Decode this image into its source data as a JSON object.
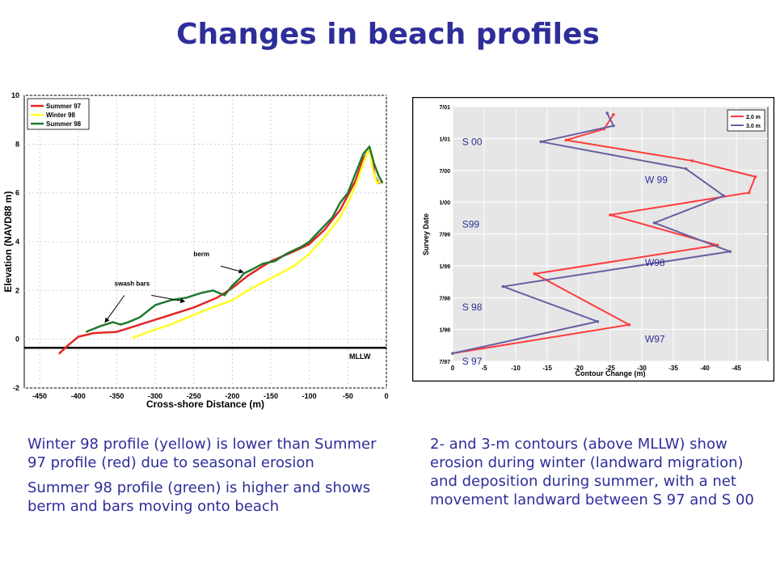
{
  "title": "Changes in beach profiles",
  "chart_data": [
    {
      "type": "line",
      "xlabel": "Cross-shore Distance (m)",
      "ylabel": "Elevation (NAVD88 m)",
      "xlim": [
        -470,
        0
      ],
      "ylim": [
        -2,
        10
      ],
      "xticks": [
        -450,
        -400,
        -350,
        -300,
        -250,
        -200,
        -150,
        -100,
        -50,
        0
      ],
      "yticks": [
        -2,
        0,
        2,
        4,
        6,
        8,
        10
      ],
      "grid": true,
      "legend": "top-left",
      "reference_line": {
        "label": "MLLW",
        "y": -0.35
      },
      "annotations": [
        {
          "text": "swash bars",
          "x": -330,
          "y": 2.2
        },
        {
          "text": "berm",
          "x": -240,
          "y": 3.4
        }
      ],
      "series": [
        {
          "name": "Summer 97",
          "color": "#e32626",
          "x": [
            -425,
            -415,
            -400,
            -380,
            -350,
            -330,
            -300,
            -280,
            -250,
            -220,
            -200,
            -180,
            -150,
            -120,
            -100,
            -80,
            -60,
            -50,
            -40,
            -30,
            -22,
            -18,
            -15,
            -10,
            -5
          ],
          "y": [
            -0.6,
            -0.3,
            0.1,
            0.25,
            0.3,
            0.5,
            0.8,
            1.0,
            1.3,
            1.7,
            2.1,
            2.6,
            3.2,
            3.6,
            3.9,
            4.5,
            5.3,
            5.9,
            6.5,
            7.4,
            7.8,
            7.2,
            6.7,
            6.4,
            6.5
          ]
        },
        {
          "name": "Winter 98",
          "color": "#ffff22",
          "x": [
            -330,
            -300,
            -280,
            -250,
            -230,
            -200,
            -180,
            -150,
            -120,
            -100,
            -80,
            -60,
            -50,
            -40,
            -30,
            -22,
            -18,
            -12,
            -6
          ],
          "y": [
            0.05,
            0.4,
            0.6,
            1.0,
            1.25,
            1.6,
            2.0,
            2.5,
            3.0,
            3.5,
            4.2,
            5.0,
            5.6,
            6.3,
            7.2,
            7.9,
            7.0,
            6.4,
            6.5
          ]
        },
        {
          "name": "Summer 98",
          "color": "#1f7a2e",
          "x": [
            -390,
            -370,
            -355,
            -345,
            -335,
            -320,
            -300,
            -280,
            -260,
            -240,
            -225,
            -210,
            -200,
            -190,
            -185,
            -175,
            -160,
            -145,
            -130,
            -110,
            -100,
            -85,
            -70,
            -60,
            -50,
            -40,
            -30,
            -22,
            -16,
            -10,
            -5
          ],
          "y": [
            0.3,
            0.55,
            0.7,
            0.6,
            0.7,
            0.9,
            1.4,
            1.6,
            1.7,
            1.9,
            2.0,
            1.8,
            2.2,
            2.5,
            2.7,
            2.85,
            3.1,
            3.2,
            3.5,
            3.8,
            4.0,
            4.5,
            5.0,
            5.6,
            6.0,
            6.8,
            7.6,
            7.9,
            7.2,
            6.7,
            6.4
          ]
        }
      ]
    },
    {
      "type": "line",
      "xlabel": "Contour Change (m)",
      "ylabel": "Survey Date",
      "xlim": [
        0,
        -50
      ],
      "xticks": [
        0,
        -5,
        -10,
        -15,
        -20,
        -25,
        -30,
        -35,
        -40,
        -45
      ],
      "yticks": [
        "7/97",
        "1/98",
        "7/98",
        "1/99",
        "7/99",
        "1/00",
        "7/00",
        "1/01",
        "7/01"
      ],
      "grid": true,
      "legend": "top-right",
      "annotations": [
        {
          "text": "S 00",
          "x": -1.5,
          "y": 6.8
        },
        {
          "text": "W 99",
          "x": -30.5,
          "y": 5.6
        },
        {
          "text": "S99",
          "x": -1.5,
          "y": 4.2
        },
        {
          "text": "W98",
          "x": -30.5,
          "y": 3.0
        },
        {
          "text": "S 98",
          "x": -1.5,
          "y": 1.6
        },
        {
          "text": "W97",
          "x": -30.5,
          "y": 0.6
        },
        {
          "text": "S 97",
          "x": -1.5,
          "y": -0.1
        }
      ],
      "series": [
        {
          "name": "2.0 m",
          "color": "#ff3b3b",
          "x": [
            0,
            -28,
            -13,
            -42,
            -25,
            -47,
            -48,
            -38,
            -18,
            -24,
            -25.5
          ],
          "y": [
            0.25,
            1.15,
            2.75,
            3.65,
            4.6,
            5.3,
            5.8,
            6.3,
            6.95,
            7.3,
            7.75
          ]
        },
        {
          "name": "3.0 m",
          "color": "#6a5fa0",
          "x": [
            0,
            -23,
            -8,
            -44,
            -32,
            -43,
            -37,
            -14,
            -25.5,
            -24.5
          ],
          "y": [
            0.25,
            1.25,
            2.35,
            3.45,
            4.35,
            5.2,
            6.05,
            6.9,
            7.4,
            7.8
          ]
        }
      ]
    }
  ],
  "text": {
    "left_p1": "Winter 98 profile (yellow) is lower than Summer 97 profile (red) due to seasonal erosion",
    "left_p2": "Summer 98 profile (green) is higher and shows berm and bars moving onto beach",
    "right_p1": "2- and 3-m contours (above MLLW) show erosion during winter (landward migration) and deposition during summer, with a net movement landward between S 97 and S 00"
  }
}
